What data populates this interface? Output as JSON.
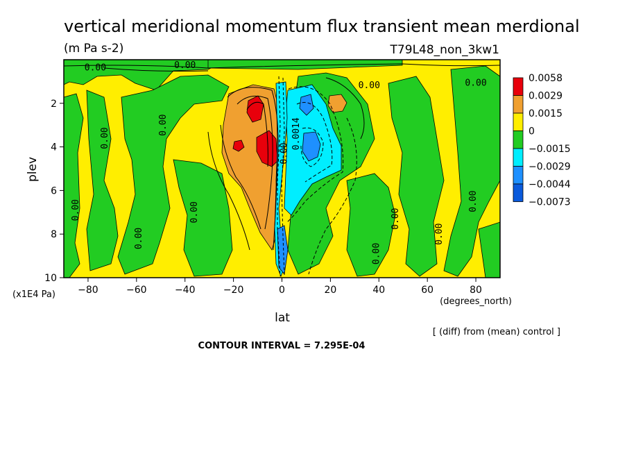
{
  "title": "vertical meridional momentum flux transient mean merdional",
  "units": "(m Pa s-2)",
  "run_label": "T79L48_non_3kw1",
  "diff_note": "[ (diff) from (mean) control ]",
  "contour_interval": "CONTOUR INTERVAL = 7.295E-04",
  "colors": {
    "red": "#e8000b",
    "orange": "#f0a030",
    "yellow": "#ffee00",
    "green": "#22cc22",
    "cyan": "#00eeff",
    "blue": "#1e90ff",
    "deepblue": "#0a5adc"
  },
  "chart_data": {
    "type": "heatmap",
    "title": "vertical meridional momentum flux transient mean merdional",
    "units": "(m Pa s-2)",
    "xlabel": "lat",
    "xlabel_units": "(degrees_north)",
    "ylabel": "plev",
    "ylabel_units": "(x1E4 Pa)",
    "xlim": [
      -90,
      90
    ],
    "ylim": [
      10,
      0
    ],
    "x_ticks": [
      -80,
      -60,
      -40,
      -20,
      0,
      20,
      40,
      60,
      80
    ],
    "x_tick_labels": [
      "−80",
      "−60",
      "−40",
      "−20",
      "0",
      "20",
      "40",
      "60",
      "80"
    ],
    "y_ticks": [
      2,
      4,
      6,
      8,
      10
    ],
    "y_tick_labels": [
      "2",
      "4",
      "6",
      "8",
      "10"
    ],
    "contour_interval": 0.0007295,
    "colorbar": {
      "levels": [
        "0.0058",
        "0.0029",
        "0.0015",
        "0",
        "−0.0015",
        "−0.0029",
        "−0.0044",
        "−0.0073"
      ],
      "colors": [
        "#e8000b",
        "#f0a030",
        "#ffee00",
        "#22cc22",
        "#00eeff",
        "#1e90ff",
        "#0a5adc"
      ]
    },
    "contour_labels": [
      {
        "text": "0.00",
        "lat": -77,
        "plev": 0.5
      },
      {
        "text": "0.00",
        "lat": -40,
        "plev": 0.0
      },
      {
        "text": "0.00",
        "lat": 36,
        "plev": 1.3
      },
      {
        "text": "0.00",
        "lat": 80,
        "plev": 1.2
      },
      {
        "text": "0.00",
        "lat": -72,
        "plev": 3.6
      },
      {
        "text": "0.00",
        "lat": -48,
        "plev": 3.0
      },
      {
        "text": "0.00",
        "lat": -84,
        "plev": 6.9
      },
      {
        "text": "0.00",
        "lat": -35,
        "plev": 7.0
      },
      {
        "text": "0.00",
        "lat": -58,
        "plev": 8.2
      },
      {
        "text": "0.00",
        "lat": 48,
        "plev": 7.3
      },
      {
        "text": "0.00",
        "lat": 80,
        "plev": 6.5
      },
      {
        "text": "0.00",
        "lat": 40,
        "plev": 8.9
      },
      {
        "text": "0.00",
        "lat": 66,
        "plev": 8.0
      },
      {
        "text": "0.0014",
        "lat": 7,
        "plev": 3.4
      },
      {
        "text": "0.00",
        "lat": 2,
        "plev": 4.3
      }
    ]
  }
}
